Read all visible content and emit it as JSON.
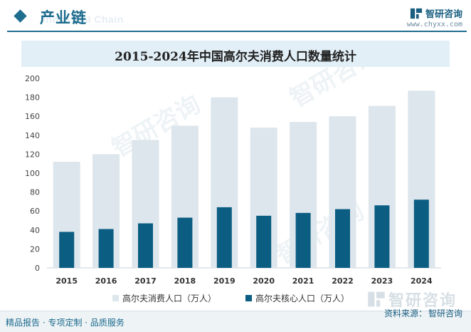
{
  "header": {
    "section_title": "产业链",
    "section_watermark": "Industrial Chain",
    "brand_name": "智研咨询",
    "brand_url": "www.chyxx.com",
    "accent_color": "#1f6d8f"
  },
  "chart_data": {
    "type": "bar",
    "title": "2015-2024年中国高尔夫消费人口数量统计",
    "categories": [
      "2015",
      "2016",
      "2017",
      "2018",
      "2019",
      "2020",
      "2021",
      "2022",
      "2023",
      "2024"
    ],
    "series": [
      {
        "name": "高尔夫消费人口（万人）",
        "color": "#dde6ec",
        "values": [
          112,
          120,
          135,
          150,
          180,
          148,
          154,
          160,
          171,
          187
        ]
      },
      {
        "name": "高尔夫核心人口（万人）",
        "color": "#0b5d82",
        "values": [
          38,
          41,
          47,
          53,
          64,
          55,
          58,
          62,
          66,
          72
        ]
      }
    ],
    "yticks": [
      0,
      20,
      40,
      60,
      80,
      100,
      120,
      140,
      160,
      180,
      200
    ],
    "ylim": [
      0,
      200
    ],
    "xlabel": "",
    "ylabel": "",
    "grid": false,
    "legend_position": "bottom"
  },
  "footer": {
    "left_text": "精品报告 · 专项定制 · 品质服务",
    "source_label": "资料来源：",
    "source_value": "智研咨询"
  },
  "watermark": {
    "brand_name": "智研咨询"
  }
}
